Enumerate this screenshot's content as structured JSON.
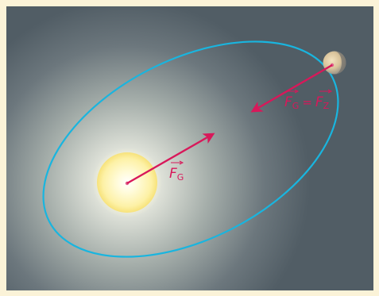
{
  "colors": {
    "frame_bg": "#fbf3d8",
    "space_bg": "#515d65",
    "glow_inner": "#eef0e6",
    "glow_mid": "#a9b2ad",
    "sun_core": "#fffbd6",
    "sun_edge": "#fbe98a",
    "orbit": "#19b5df",
    "force_arrow": "#d8185a",
    "planet_light": "#e6d2aa",
    "planet_dark": "#8e8c86"
  },
  "labels": {
    "sun_force": {
      "letter": "F",
      "sub": "G"
    },
    "planet_force": {
      "left_letter": "F",
      "left_sub": "G",
      "equals": "=",
      "right_letter": "F",
      "right_sub": "Z"
    }
  },
  "icons": {
    "sun": "sun-icon",
    "planet": "planet-icon"
  }
}
